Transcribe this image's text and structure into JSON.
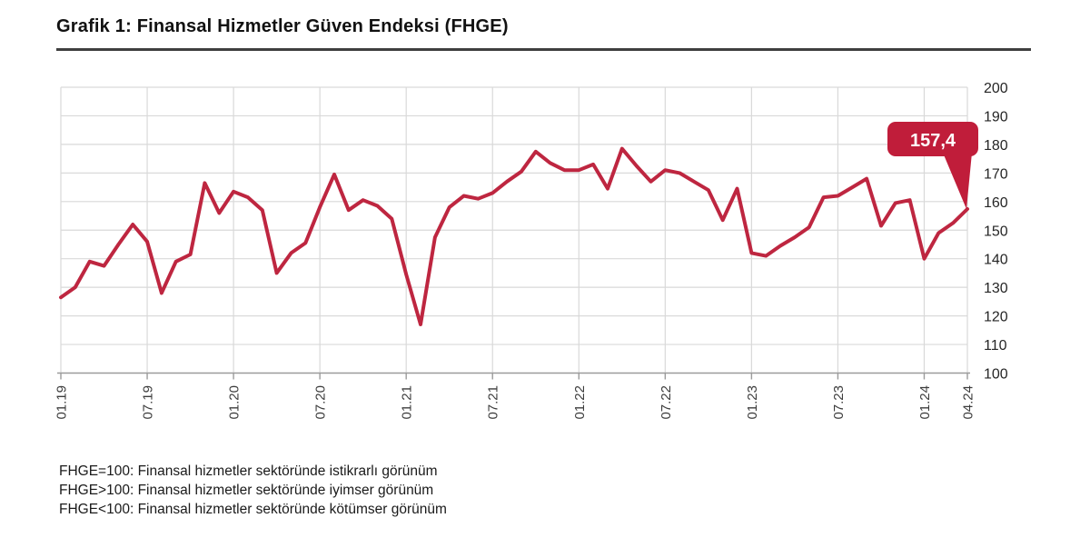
{
  "page": {
    "title": "Grafik 1: Finansal Hizmetler Güven Endeksi (FHGE)",
    "footnotes": [
      "FHGE=100: Finansal hizmetler sektöründe istikrarlı görünüm",
      "FHGE>100: Finansal hizmetler sektöründe iyimser görünüm",
      "FHGE<100: Finansal hizmetler sektöründe kötümser görünüm"
    ]
  },
  "chart_data": {
    "type": "line",
    "title": "Grafik 1: Finansal Hizmetler Güven Endeksi (FHGE)",
    "x": [
      "01.19",
      "02.19",
      "03.19",
      "04.19",
      "05.19",
      "06.19",
      "07.19",
      "08.19",
      "09.19",
      "10.19",
      "11.19",
      "12.19",
      "01.20",
      "02.20",
      "03.20",
      "04.20",
      "05.20",
      "06.20",
      "07.20",
      "08.20",
      "09.20",
      "10.20",
      "11.20",
      "12.20",
      "01.21",
      "02.21",
      "03.21",
      "04.21",
      "05.21",
      "06.21",
      "07.21",
      "08.21",
      "09.21",
      "10.21",
      "11.21",
      "12.21",
      "01.22",
      "02.22",
      "03.22",
      "04.22",
      "05.22",
      "06.22",
      "07.22",
      "08.22",
      "09.22",
      "10.22",
      "11.22",
      "12.22",
      "01.23",
      "02.23",
      "03.23",
      "04.23",
      "05.23",
      "06.23",
      "07.23",
      "08.23",
      "09.23",
      "10.23",
      "11.23",
      "12.23",
      "01.24",
      "02.24",
      "03.24",
      "04.24"
    ],
    "values": [
      126.5,
      130,
      139,
      137.5,
      145,
      152,
      146,
      128,
      139,
      141.5,
      166.5,
      156,
      163.5,
      161.5,
      157,
      135,
      142,
      145.5,
      158,
      169.5,
      157,
      160.5,
      158.5,
      154,
      134.5,
      117,
      147.5,
      158,
      162,
      161,
      163,
      167,
      170.5,
      177.5,
      173.5,
      171,
      171,
      173,
      164.5,
      178.5,
      172.5,
      167,
      171,
      170,
      167,
      164,
      153.5,
      164.5,
      142,
      141,
      144.5,
      147.5,
      151,
      161.5,
      162,
      165,
      168,
      151.5,
      159.5,
      160.5,
      140,
      149,
      152.5,
      157.4
    ],
    "x_ticks": [
      {
        "label": "01.19",
        "month_index": 0
      },
      {
        "label": "07.19",
        "month_index": 6
      },
      {
        "label": "01.20",
        "month_index": 12
      },
      {
        "label": "07.20",
        "month_index": 18
      },
      {
        "label": "01.21",
        "month_index": 24
      },
      {
        "label": "07.21",
        "month_index": 30
      },
      {
        "label": "01.22",
        "month_index": 36
      },
      {
        "label": "07.22",
        "month_index": 42
      },
      {
        "label": "01.23",
        "month_index": 48
      },
      {
        "label": "07.23",
        "month_index": 54
      },
      {
        "label": "01.24",
        "month_index": 60
      },
      {
        "label": "04.24",
        "month_index": 63
      }
    ],
    "y_ticks": [
      200,
      190,
      180,
      170,
      160,
      150,
      140,
      130,
      120,
      110,
      100
    ],
    "ylim": [
      100,
      200
    ],
    "grid": true,
    "legend": "none",
    "annotation": {
      "label": "157,4",
      "value": 157.4,
      "x": "04.24"
    },
    "colors": {
      "line": "#be2640",
      "callout": "#c01d3a",
      "callout_text": "#ffffff",
      "grid": "#d9d9d9",
      "axis": "#9b9b9b",
      "tick_label": "#3d3d3d",
      "y_label": "#262626"
    }
  }
}
